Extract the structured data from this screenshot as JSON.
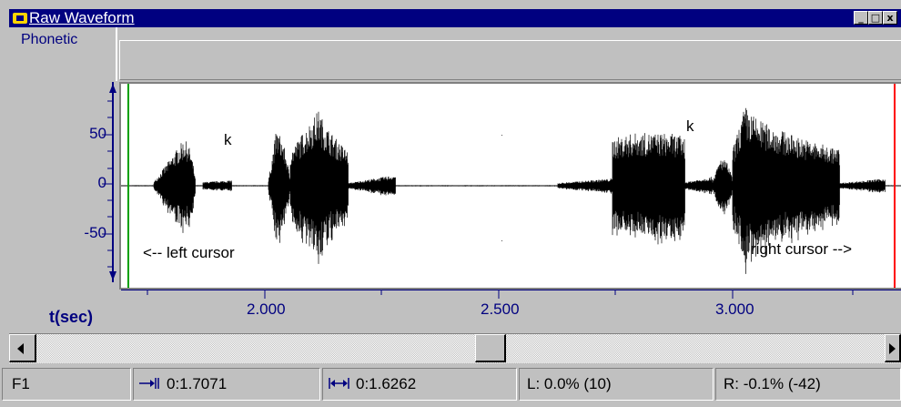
{
  "window": {
    "title": "Raw Waveform",
    "minimize_glyph": "_",
    "maximize_glyph": "□",
    "close_glyph": "x"
  },
  "phonetic": {
    "label": "Phonetic"
  },
  "y_axis": {
    "ticks": [
      "50",
      "0",
      "-50"
    ]
  },
  "x_axis": {
    "label": "t(sec)",
    "ticks": [
      "2.000",
      "2.500",
      "3.000"
    ]
  },
  "plot": {
    "left_cursor_color": "#00a000",
    "right_cursor_color": "#ff0000",
    "annotations": {
      "k1": "k",
      "k2": "k",
      "left_cursor": "<-- left cursor",
      "right_cursor": "right cursor -->"
    }
  },
  "status": {
    "key": "F1",
    "cursor_position": "0:1.7071",
    "selection_length": "0:1.6262",
    "left_level": "L: 0.0% (10)",
    "right_level": "R: -0.1% (-42)"
  },
  "colors": {
    "accent": "#000080",
    "face": "#c0c0c0",
    "waveform": "#000000"
  }
}
